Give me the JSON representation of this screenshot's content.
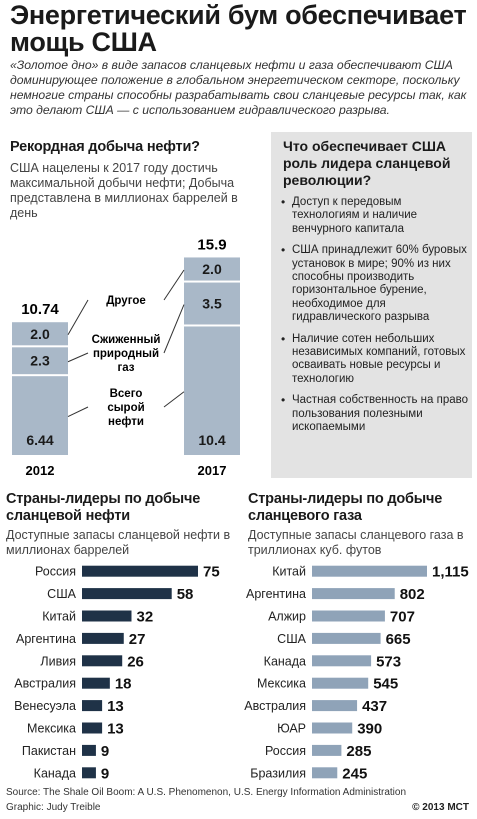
{
  "header": {
    "title": "Энергетический бум обеспечивает мощь США",
    "intro": "«Золотое дно» в виде запасов сланцевых нефти и газа обеспечивают США доминирующее положение в глобальном энергетическом секторе, поскольку немногие страны способны разрабатывать свои сланцевые ресурсы так, как это делают США — с использованием гидравлического разрыва."
  },
  "production": {
    "title": "Рекордная добыча нефти?",
    "subtitle": "США нацелены к 2017 году достичь максимальной добычи нефти; Добыча представлена в миллионах баррелей в день"
  },
  "sidebar": {
    "title": "Что обеспечивает США роль лидера сланцевой революции?",
    "bullets": [
      "Доступ к передовым технологиям и наличие венчурного капитала",
      "США принадлежит 60% буровых установок в мире; 90% из них способны производить горизонтальное бурение, необходимое для гидравлического разрыва",
      "Наличие сотен небольших независимых компаний, готовых осваивать новые ресурсы и технологию",
      "Частная собственность на право пользования полезными ископаемыми"
    ]
  },
  "oil_reserves": {
    "title": "Страны-лидеры по добыче сланцевой нефти",
    "subtitle": "Доступные запасы сланцевой нефти в миллионах баррелей"
  },
  "gas_reserves": {
    "title": "Страны-лидеры по добыче сланцевого газа",
    "subtitle": "Доступные запасы сланцевого газа в триллионах куб. футов"
  },
  "footer": {
    "source": "Source: The Shale Oil Boom: A U.S. Phenomenon, U.S. Energy Information Administration",
    "graphic": "Graphic: Judy Treible",
    "copyright": "© 2013 MCT"
  },
  "colors": {
    "bar_light": "#a9b8c8",
    "bar_dark": "#1f3247",
    "sidebar_bg": "#e3e3e3"
  },
  "chart_data": [
    {
      "type": "bar",
      "stacked": true,
      "categories": [
        "2012",
        "2017"
      ],
      "series": [
        {
          "name": "Всего сырой нефти",
          "values": [
            6.44,
            10.4
          ]
        },
        {
          "name": "Сжиженный природный газ",
          "values": [
            2.3,
            3.5
          ]
        },
        {
          "name": "Другое",
          "values": [
            2.0,
            2.0
          ]
        }
      ],
      "totals": [
        10.74,
        15.9
      ],
      "totals_labels": [
        "10.74",
        "15.9"
      ]
    },
    {
      "type": "bar",
      "orientation": "horizontal",
      "categories": [
        "Россия",
        "США",
        "Китай",
        "Аргентина",
        "Ливия",
        "Австралия",
        "Венесуэла",
        "Мексика",
        "Пакистан",
        "Канада"
      ],
      "values": [
        75,
        58,
        32,
        27,
        26,
        18,
        13,
        13,
        9,
        9
      ],
      "value_labels": [
        "75",
        "58",
        "32",
        "27",
        "26",
        "18",
        "13",
        "13",
        "9",
        "9"
      ]
    },
    {
      "type": "bar",
      "orientation": "horizontal",
      "categories": [
        "Китай",
        "Аргентина",
        "Алжир",
        "США",
        "Канада",
        "Мексика",
        "Австралия",
        "ЮАР",
        "Россия",
        "Бразилия"
      ],
      "values": [
        1115,
        802,
        707,
        665,
        573,
        545,
        437,
        390,
        285,
        245
      ],
      "value_labels": [
        "1,115",
        "802",
        "707",
        "665",
        "573",
        "545",
        "437",
        "390",
        "285",
        "245"
      ]
    }
  ]
}
